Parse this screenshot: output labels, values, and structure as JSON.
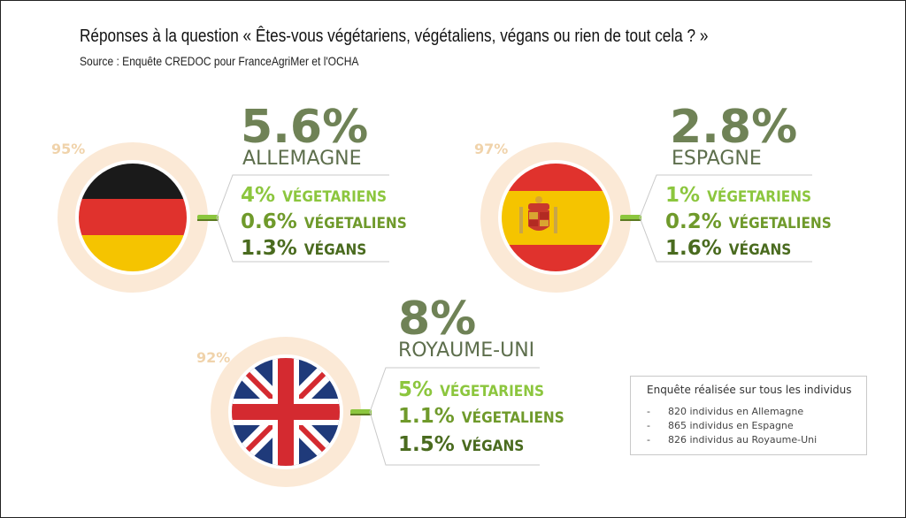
{
  "title": "Réponses à la question « Êtes-vous végétariens, végétaliens, végans ou rien de tout cela ? »",
  "source": "Source : Enquête CREDOC pour FranceAgriMer et l'OCHA",
  "colors": {
    "big_pct": "#6f8256",
    "country_label": "#5d6e4c",
    "ring": "#fbe9d6",
    "ring_label": "#f0d3ab",
    "vegetariens": "#8cc63e",
    "vegetaliens": "#6f9a2b",
    "vegans": "#4a6b1f",
    "connector": "#8cc63e"
  },
  "chart_data": {
    "type": "infographic",
    "countries": [
      {
        "name": "ALLEMAGNE",
        "total": "5.6%",
        "rest": "95%",
        "flag": "germany-flag-icon",
        "stats": [
          {
            "pct": "4%",
            "label": "VÉGETARIENS",
            "value": 4
          },
          {
            "pct": "0.6%",
            "label": "VÉGETALIENS",
            "value": 0.6
          },
          {
            "pct": "1.3%",
            "label": "VÉGANS",
            "value": 1.3
          }
        ]
      },
      {
        "name": "ESPAGNE",
        "total": "2.8%",
        "rest": "97%",
        "flag": "spain-flag-icon",
        "stats": [
          {
            "pct": "1%",
            "label": "VÉGETARIENS",
            "value": 1
          },
          {
            "pct": "0.2%",
            "label": "VÉGETALIENS",
            "value": 0.2
          },
          {
            "pct": "1.6%",
            "label": "VÉGANS",
            "value": 1.6
          }
        ]
      },
      {
        "name": "ROYAUME-UNI",
        "total": "8%",
        "rest": "92%",
        "flag": "uk-flag-icon",
        "stats": [
          {
            "pct": "5%",
            "label": "VÉGETARIENS",
            "value": 5
          },
          {
            "pct": "1.1%",
            "label": "VÉGETALIENS",
            "value": 1.1
          },
          {
            "pct": "1.5%",
            "label": "VÉGANS",
            "value": 1.5
          }
        ]
      }
    ]
  },
  "note": {
    "title": "Enquête réalisée sur tous les individus",
    "lines": [
      "820 individus en Allemagne",
      "865 individus en Espagne",
      "826 individus au Royaume-Uni"
    ],
    "dash": "-"
  }
}
